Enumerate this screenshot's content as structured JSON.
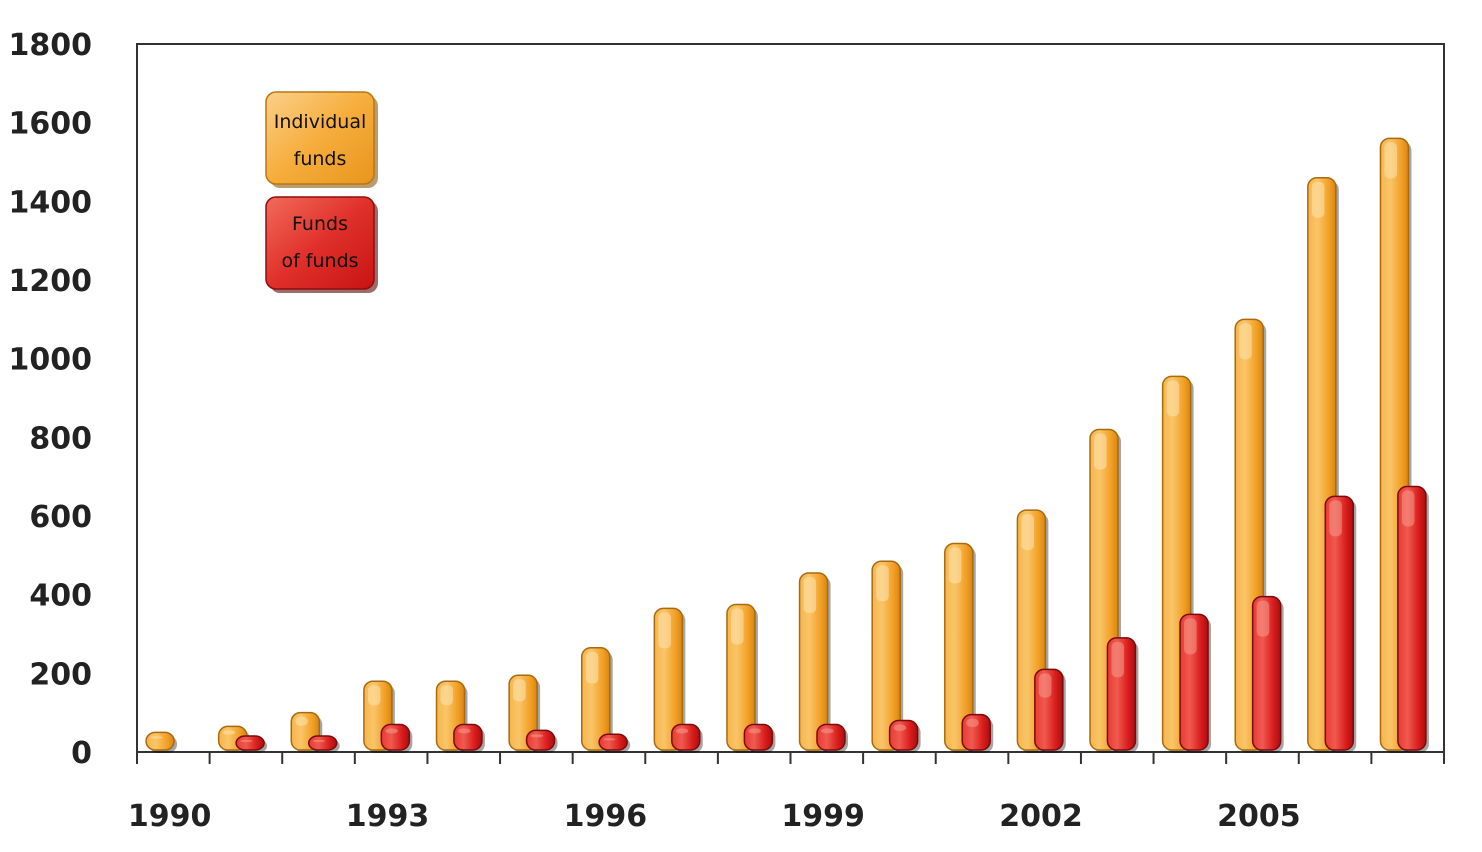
{
  "chart_data": {
    "type": "bar",
    "categories": [
      "1990",
      "1991",
      "1992",
      "1993",
      "1994",
      "1995",
      "1996",
      "1997",
      "1998",
      "1999",
      "2000",
      "2001",
      "2002",
      "2003",
      "2004",
      "2005",
      "2006",
      "2007"
    ],
    "x_tick_labels": [
      "1990",
      "1993",
      "1996",
      "1999",
      "2002",
      "2005"
    ],
    "y_tick_labels": [
      "0",
      "200",
      "400",
      "600",
      "800",
      "1000",
      "1200",
      "1400",
      "1600",
      "1800"
    ],
    "ylim": [
      0,
      1800
    ],
    "grid": false,
    "legend_position": "top-left",
    "series": [
      {
        "name_lines": [
          "Individual",
          "funds"
        ],
        "color": "#f5a623",
        "values": [
          50,
          65,
          100,
          180,
          180,
          195,
          265,
          365,
          375,
          455,
          485,
          530,
          615,
          820,
          955,
          1100,
          1460,
          1560
        ]
      },
      {
        "name_lines": [
          "Funds",
          "of funds"
        ],
        "color": "#d81e1e",
        "values": [
          null,
          20,
          25,
          70,
          70,
          55,
          45,
          70,
          70,
          70,
          80,
          95,
          210,
          290,
          350,
          395,
          650,
          675
        ]
      }
    ]
  }
}
